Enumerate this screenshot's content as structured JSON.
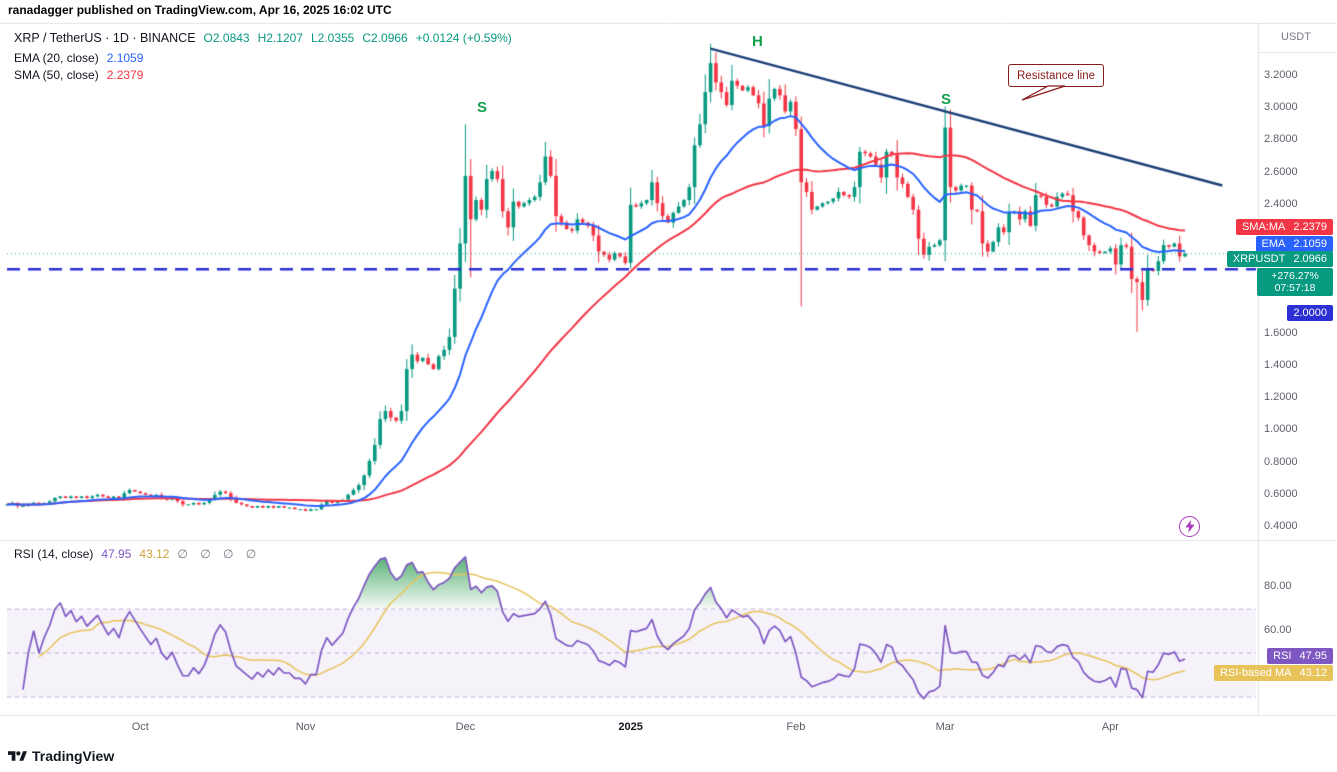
{
  "page": {
    "publish_line": "ranadagger published on TradingView.com, Apr 16, 2025 16:02 UTC",
    "watermark": "TradingView"
  },
  "legend": {
    "market": "XRP / TetherUS · 1D · BINANCE",
    "ohlc": {
      "o": "O2.0843",
      "h": "H2.1207",
      "l": "L2.0355",
      "c": "C2.0966",
      "chg": "+0.0124 (+0.59%)"
    },
    "ema": {
      "label": "EMA (20, close)",
      "value": "2.1059"
    },
    "sma": {
      "label": "SMA (50, close)",
      "value": "2.2379"
    },
    "rsi": {
      "label": "RSI (14, close)",
      "value": "47.95",
      "ma_value": "43.12",
      "empties": "∅ ∅ ∅ ∅"
    }
  },
  "axis": {
    "currency": "USDT"
  },
  "badges": {
    "sma": {
      "name": "SMA:MA",
      "value": "2.2379"
    },
    "ema": {
      "name": "EMA",
      "value": "2.1059"
    },
    "price": {
      "name": "XRPUSDT",
      "value": "2.0966"
    },
    "change_pct": "+276.27%",
    "countdown": "07:57:18",
    "hline": "2.0000",
    "rsi": {
      "name": "RSI",
      "value": "47.95"
    },
    "rsi_ma": {
      "name": "RSI-based MA",
      "value": "43.12"
    }
  },
  "annotations": {
    "shoulder_left": "S",
    "head": "H",
    "shoulder_right": "S",
    "callout": "Resistance line"
  },
  "chart_data": {
    "type": "candlestick",
    "symbol": "XRPUSDT",
    "market": "XRP / TetherUS",
    "exchange": "BINANCE",
    "interval": "1D",
    "ylim": [
      0.33,
      3.47
    ],
    "last_price": 2.0966,
    "hline_price": 2.0,
    "indicators": {
      "ema_period": 20,
      "sma_period": 50,
      "rsi_period": 14,
      "rsi_ma_period": 14
    },
    "price_ticks": [
      {
        "label": "3.2000",
        "v": 3.2
      },
      {
        "label": "3.0000",
        "v": 3.0
      },
      {
        "label": "2.8000",
        "v": 2.8
      },
      {
        "label": "2.6000",
        "v": 2.6
      },
      {
        "label": "2.4000",
        "v": 2.4
      },
      {
        "label": "1.6000",
        "v": 1.6
      },
      {
        "label": "1.4000",
        "v": 1.4
      },
      {
        "label": "1.2000",
        "v": 1.2
      },
      {
        "label": "1.0000",
        "v": 1.0
      },
      {
        "label": "0.8000",
        "v": 0.8
      },
      {
        "label": "0.6000",
        "v": 0.6
      },
      {
        "label": "0.4000",
        "v": 0.4
      }
    ],
    "rsi_ticks": [
      {
        "label": "80.00",
        "v": 80
      },
      {
        "label": "60.00",
        "v": 60
      }
    ],
    "rsi_band": {
      "upper": 70,
      "middle": 50,
      "lower": 30
    },
    "time_ticks": [
      {
        "label": "Oct",
        "i": 25
      },
      {
        "label": "Nov",
        "i": 56
      },
      {
        "label": "Dec",
        "i": 86
      },
      {
        "label": "2025",
        "i": 117,
        "major": true
      },
      {
        "label": "Feb",
        "i": 148
      },
      {
        "label": "Mar",
        "i": 176
      },
      {
        "label": "Apr",
        "i": 207
      }
    ],
    "trendline": {
      "i1": 132,
      "p1": 3.37,
      "i2": 228,
      "p2": 2.52
    },
    "closes": [
      0.54,
      0.55,
      0.53,
      0.53,
      0.54,
      0.55,
      0.54,
      0.55,
      0.56,
      0.58,
      0.59,
      0.58,
      0.59,
      0.58,
      0.59,
      0.58,
      0.59,
      0.6,
      0.59,
      0.58,
      0.59,
      0.58,
      0.61,
      0.63,
      0.62,
      0.61,
      0.6,
      0.59,
      0.6,
      0.58,
      0.57,
      0.58,
      0.56,
      0.54,
      0.54,
      0.55,
      0.54,
      0.55,
      0.57,
      0.6,
      0.62,
      0.61,
      0.58,
      0.55,
      0.54,
      0.53,
      0.52,
      0.53,
      0.52,
      0.53,
      0.52,
      0.53,
      0.52,
      0.52,
      0.51,
      0.51,
      0.5,
      0.51,
      0.51,
      0.54,
      0.56,
      0.55,
      0.56,
      0.57,
      0.6,
      0.63,
      0.66,
      0.72,
      0.81,
      0.91,
      1.07,
      1.12,
      1.08,
      1.06,
      1.12,
      1.38,
      1.47,
      1.43,
      1.45,
      1.41,
      1.38,
      1.46,
      1.5,
      1.58,
      1.88,
      2.16,
      2.58,
      2.31,
      2.43,
      2.37,
      2.56,
      2.61,
      2.56,
      2.36,
      2.26,
      2.42,
      2.39,
      2.41,
      2.43,
      2.45,
      2.54,
      2.7,
      2.58,
      2.33,
      2.29,
      2.25,
      2.24,
      2.31,
      2.29,
      2.27,
      2.21,
      2.11,
      2.09,
      2.06,
      2.1,
      2.08,
      2.04,
      2.4,
      2.39,
      2.41,
      2.43,
      2.54,
      2.41,
      2.33,
      2.29,
      2.35,
      2.39,
      2.43,
      2.51,
      2.77,
      2.9,
      3.1,
      3.28,
      3.16,
      3.1,
      3.02,
      3.17,
      3.14,
      3.11,
      3.13,
      3.08,
      3.03,
      2.89,
      3.06,
      3.12,
      3.08,
      2.98,
      3.04,
      2.87,
      2.54,
      2.48,
      2.37,
      2.39,
      2.41,
      2.42,
      2.44,
      2.48,
      2.46,
      2.45,
      2.51,
      2.73,
      2.72,
      2.7,
      2.65,
      2.57,
      2.73,
      2.71,
      2.57,
      2.53,
      2.45,
      2.37,
      2.19,
      2.09,
      2.14,
      2.15,
      2.18,
      2.88,
      2.51,
      2.49,
      2.52,
      2.52,
      2.37,
      2.36,
      2.16,
      2.11,
      2.17,
      2.26,
      2.23,
      2.35,
      2.36,
      2.31,
      2.36,
      2.27,
      2.46,
      2.45,
      2.4,
      2.39,
      2.45,
      2.47,
      2.46,
      2.36,
      2.32,
      2.21,
      2.15,
      2.11,
      2.1,
      2.11,
      2.13,
      2.03,
      2.15,
      2.14,
      1.94,
      1.92,
      1.81,
      2.0,
      1.99,
      2.05,
      2.15,
      2.14,
      2.16,
      2.08,
      2.0966
    ],
    "wick_overrides": [
      {
        "i": 86,
        "h": 2.9
      },
      {
        "i": 87,
        "l": 1.95
      },
      {
        "i": 131,
        "h": 3.21
      },
      {
        "i": 132,
        "h": 3.4
      },
      {
        "i": 149,
        "l": 1.77
      },
      {
        "i": 176,
        "h": 3.01
      },
      {
        "i": 212,
        "l": 1.61
      }
    ],
    "colors": {
      "up": "#089981",
      "down": "#F23645",
      "ema": "#2962FF",
      "sma": "#F23645",
      "trendline": "#1d3f77",
      "hline": "#2b2fd4",
      "last_price_line": "rgba(8,153,129,0.8)",
      "rsi": "#7E57C2",
      "rsi_ma": "#e7c35a",
      "rsi_band_fill": "rgba(126,87,194,0.08)",
      "rsi_band_line": "rgba(126,87,194,0.45)",
      "overbought_fill_top": "rgba(27,148,64,0.8)",
      "overbought_fill_bottom": "rgba(27,148,64,0.04)",
      "marker_green": "#12a14b",
      "callout": "#8b1a1a"
    }
  }
}
